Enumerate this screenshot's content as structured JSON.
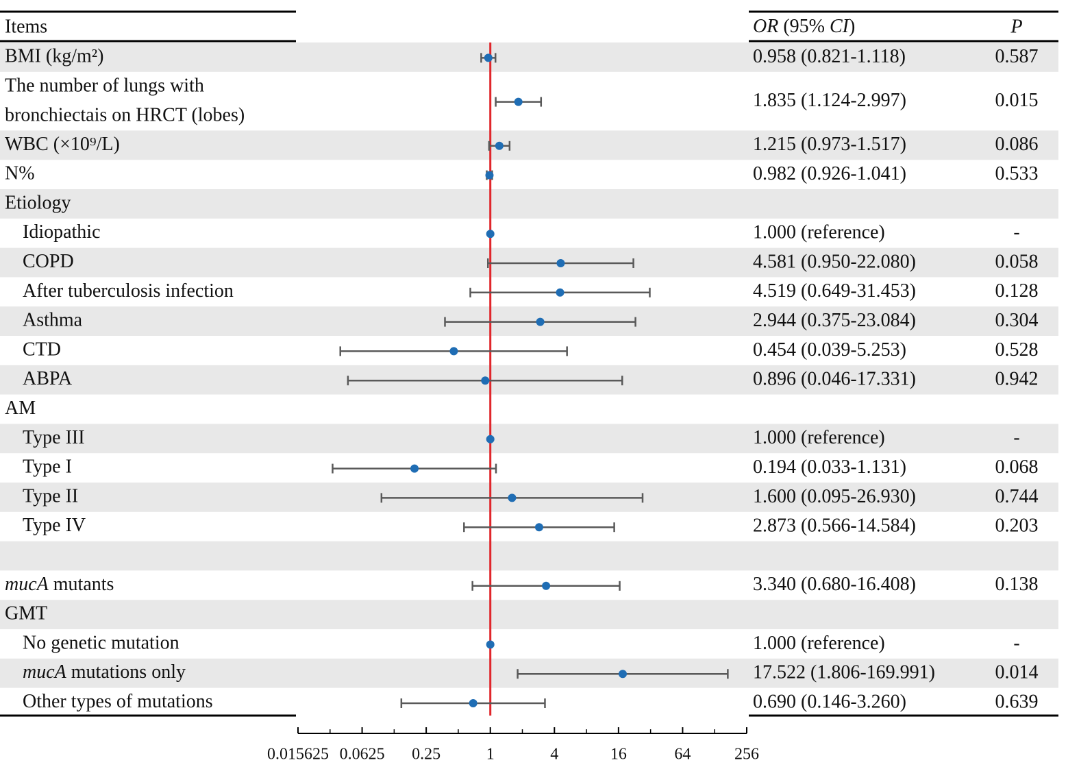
{
  "chart_data": {
    "type": "forest",
    "items_header": "Items",
    "ci_header": [
      {
        "text": "OR",
        "italic": true
      },
      {
        "text": " (95% ",
        "italic": false
      },
      {
        "text": "CI",
        "italic": true
      },
      {
        "text": ")",
        "italic": false
      }
    ],
    "p_header": "P",
    "point_color": "#1f6db4",
    "whisker_color": "#595959",
    "ref_line": 1,
    "ref_color": "#e0262b",
    "log_base": 2,
    "xlim": [
      0.015625,
      256
    ],
    "xticks": [
      0.015625,
      0.0625,
      0.25,
      1,
      4,
      16,
      64,
      256
    ],
    "minor_xticks": [
      0.03125,
      0.125,
      0.5,
      2,
      8,
      32,
      128
    ],
    "rows": [
      {
        "label": "BMI (kg/m²)",
        "or": 0.958,
        "lower": 0.821,
        "upper": 1.118,
        "ci_label": "0.958 (0.821-1.118)",
        "p": "0.587"
      },
      {
        "label": [
          "The number of lungs with",
          "bronchiectais on HRCT (lobes)"
        ],
        "or": 1.835,
        "lower": 1.124,
        "upper": 2.997,
        "ci_label": "1.835 (1.124-2.997)",
        "p": "0.015"
      },
      {
        "label": "WBC (×10⁹/L)",
        "or": 1.215,
        "lower": 0.973,
        "upper": 1.517,
        "ci_label": "1.215 (0.973-1.517)",
        "p": "0.086"
      },
      {
        "label": "N%",
        "or": 0.982,
        "lower": 0.926,
        "upper": 1.041,
        "ci_label": "0.982 (0.926-1.041)",
        "p": "0.533"
      },
      {
        "label": "Etiology"
      },
      {
        "label": "Idiopathic",
        "indent": true,
        "or": 1,
        "ci_label": "1.000 (reference)",
        "p": "-"
      },
      {
        "label": "COPD",
        "indent": true,
        "or": 4.581,
        "lower": 0.95,
        "upper": 22.08,
        "ci_label": "4.581 (0.950-22.080)",
        "p": "0.058"
      },
      {
        "label": "After tuberculosis infection",
        "indent": true,
        "or": 4.519,
        "lower": 0.649,
        "upper": 31.453,
        "ci_label": "4.519 (0.649-31.453)",
        "p": "0.128"
      },
      {
        "label": "Asthma",
        "indent": true,
        "or": 2.944,
        "lower": 0.375,
        "upper": 23.084,
        "ci_label": "2.944 (0.375-23.084)",
        "p": "0.304"
      },
      {
        "label": "CTD",
        "indent": true,
        "or": 0.454,
        "lower": 0.039,
        "upper": 5.253,
        "ci_label": "0.454 (0.039-5.253)",
        "p": "0.528"
      },
      {
        "label": "ABPA",
        "indent": true,
        "or": 0.896,
        "lower": 0.046,
        "upper": 17.331,
        "ci_label": "0.896 (0.046-17.331)",
        "p": "0.942"
      },
      {
        "label": "AM"
      },
      {
        "label": "Type III",
        "indent": true,
        "or": 1,
        "ci_label": "1.000 (reference)",
        "p": "-"
      },
      {
        "label": "Type I",
        "indent": true,
        "or": 0.194,
        "lower": 0.033,
        "upper": 1.131,
        "ci_label": "0.194 (0.033-1.131)",
        "p": "0.068"
      },
      {
        "label": "Type II",
        "indent": true,
        "or": 1.6,
        "lower": 0.095,
        "upper": 26.93,
        "ci_label": "1.600 (0.095-26.930)",
        "p": "0.744"
      },
      {
        "label": "Type IV",
        "indent": true,
        "or": 2.873,
        "lower": 0.566,
        "upper": 14.584,
        "ci_label": "2.873 (0.566-14.584)",
        "p": "0.203"
      },
      {},
      {
        "label_italic": "mucA",
        "label": " mutants",
        "or": 3.34,
        "lower": 0.68,
        "upper": 16.408,
        "ci_label": "3.340 (0.680-16.408)",
        "p": "0.138"
      },
      {
        "label": "GMT"
      },
      {
        "label": "No genetic mutation",
        "indent": true,
        "or": 1,
        "ci_label": "1.000 (reference)",
        "p": "-"
      },
      {
        "label_italic": "mucA",
        "label": " mutations only",
        "indent": true,
        "or": 17.522,
        "lower": 1.806,
        "upper": 169.991,
        "ci_label": "17.522 (1.806-169.991)",
        "p": "0.014"
      },
      {
        "label": "Other types of mutations",
        "indent": true,
        "or": 0.69,
        "lower": 0.146,
        "upper": 3.26,
        "ci_label": "0.690 (0.146-3.260)",
        "p": "0.639"
      }
    ]
  }
}
